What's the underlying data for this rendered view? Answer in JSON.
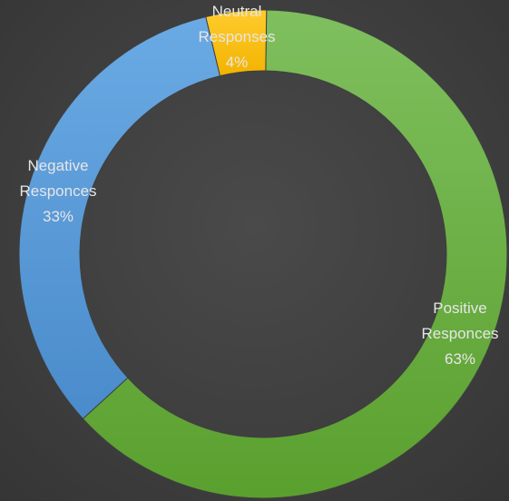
{
  "chart_data": {
    "type": "pie",
    "title": "",
    "slices": [
      {
        "name": "Positive Responces",
        "label_lines": [
          "Positive",
          "Responces"
        ],
        "value": 63,
        "value_label": "63%",
        "color": "#70ad47"
      },
      {
        "name": "Negative Responces",
        "label_lines": [
          "Negative",
          "Responces"
        ],
        "value": 33,
        "value_label": "33%",
        "color": "#5b9bd5"
      },
      {
        "name": "Neutral Responses",
        "label_lines": [
          "Neutral",
          "Responses"
        ],
        "value": 4,
        "value_label": "4%",
        "color": "#ffc000"
      }
    ],
    "legend": "none"
  }
}
